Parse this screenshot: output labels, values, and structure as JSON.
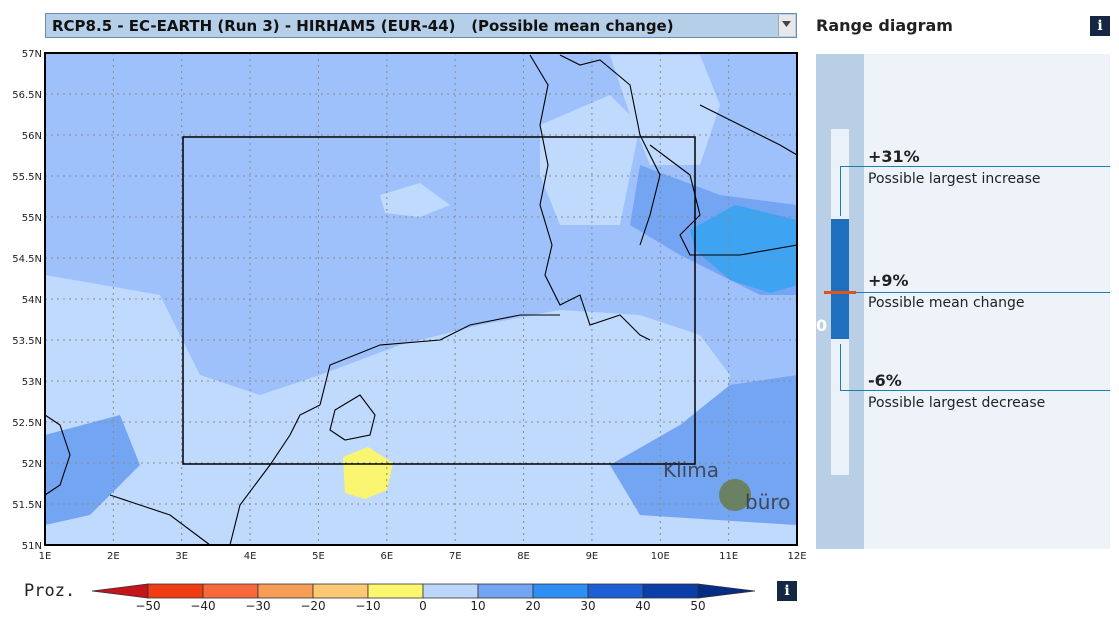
{
  "selector": {
    "value": "RCP8.5 - EC-EARTH (Run 3) - HIRHAM5 (EUR-44)   (Possible mean change)"
  },
  "map": {
    "lat_labels": [
      "57N",
      "56.5N",
      "56N",
      "55.5N",
      "55N",
      "54.5N",
      "54N",
      "53.5N",
      "53N",
      "52.5N",
      "52N",
      "51.5N",
      "51N"
    ],
    "lon_labels": [
      "1E",
      "2E",
      "3E",
      "4E",
      "5E",
      "6E",
      "7E",
      "8E",
      "9E",
      "10E",
      "11E",
      "12E"
    ],
    "colors": {
      "base": "#9ec1fb",
      "light": "#c0dafd",
      "medium": "#73a5f3",
      "strong": "#3ea3f1",
      "yellow": "#faf571"
    }
  },
  "legend": {
    "label": "Proz.",
    "ticks": [
      "−50",
      "−40",
      "−30",
      "−20",
      "−10",
      "0",
      "10",
      "20",
      "30",
      "40",
      "50"
    ],
    "colors": [
      "#c6141b",
      "#f03c14",
      "#f7683c",
      "#f89d56",
      "#fbc973",
      "#fdf66f",
      "#bcd6fb",
      "#73a5f3",
      "#2f8ef1",
      "#1e5fd6",
      "#0a3ea8",
      "#062d85"
    ]
  },
  "range": {
    "title": "Range diagram",
    "zero_label": "0",
    "increase": {
      "value": "+31%",
      "label": "Possible largest increase"
    },
    "mean": {
      "value": "+9%",
      "label": "Possible mean change"
    },
    "decrease": {
      "value": "-6%",
      "label": "Possible largest decrease"
    }
  },
  "info_icon": "i"
}
